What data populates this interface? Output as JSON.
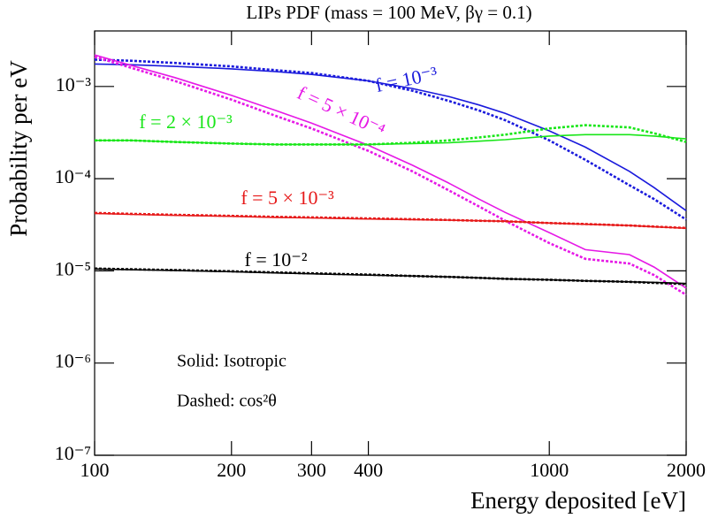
{
  "chart_data": {
    "type": "line",
    "title": "LIPs PDF (mass = 100 MeV, βγ = 0.1)",
    "x_label": "Energy deposited [eV]",
    "y_label": "Probability per eV",
    "log_x": true,
    "log_y": true,
    "xlim": [
      100,
      2000
    ],
    "ylim": [
      1e-07,
      0.004
    ],
    "xticks": [
      100,
      200,
      300,
      400,
      1000,
      2000
    ],
    "yticks": [
      {
        "value": 1e-07,
        "label": "10⁻⁷"
      },
      {
        "value": 1e-06,
        "label": "10⁻⁶"
      },
      {
        "value": 1e-05,
        "label": "10⁻⁵"
      },
      {
        "value": 0.0001,
        "label": "10⁻⁴"
      },
      {
        "value": 0.001,
        "label": "10⁻³"
      }
    ],
    "x": [
      100,
      120,
      150,
      200,
      250,
      300,
      400,
      500,
      600,
      700,
      800,
      1000,
      1200,
      1500,
      1700,
      2000
    ],
    "series": [
      {
        "name": "f = 10⁻³",
        "color": "#1a1adc",
        "values": [
          0.00175,
          0.00172,
          0.00165,
          0.00155,
          0.00145,
          0.00135,
          0.00115,
          0.00095,
          0.00078,
          0.00063,
          0.00051,
          0.00033,
          0.00022,
          0.00012,
          8e-05,
          4.5e-05
        ],
        "dashed_values": [
          0.00195,
          0.0019,
          0.0018,
          0.00165,
          0.0015,
          0.0014,
          0.00115,
          0.0009,
          0.0007,
          0.00055,
          0.00043,
          0.00026,
          0.00016,
          8.5e-05,
          6e-05,
          3.6e-05
        ]
      },
      {
        "name": "f = 5 × 10⁻⁴",
        "color": "#e619e6",
        "values": [
          0.0022,
          0.0017,
          0.00125,
          0.0008,
          0.00055,
          0.0004,
          0.00023,
          0.00014,
          9e-05,
          6e-05,
          4.3e-05,
          2.6e-05,
          1.7e-05,
          1.5e-05,
          1.1e-05,
          6.5e-06
        ],
        "dashed_values": [
          0.0021,
          0.0016,
          0.00115,
          0.00072,
          0.00048,
          0.00035,
          0.0002,
          0.00012,
          7.5e-05,
          5e-05,
          3.5e-05,
          2e-05,
          1.35e-05,
          1.2e-05,
          9e-06,
          5.5e-06
        ]
      },
      {
        "name": "f = 2 × 10⁻³",
        "color": "#19e619",
        "values": [
          0.00026,
          0.00026,
          0.00025,
          0.00024,
          0.000235,
          0.000235,
          0.000235,
          0.00024,
          0.000245,
          0.000255,
          0.000265,
          0.00029,
          0.0003,
          0.0003,
          0.00029,
          0.00027
        ],
        "dashed_values": [
          0.00026,
          0.00026,
          0.00025,
          0.00024,
          0.000235,
          0.000235,
          0.000235,
          0.000245,
          0.00026,
          0.00028,
          0.0003,
          0.00035,
          0.00038,
          0.00036,
          0.00031,
          0.00025
        ]
      },
      {
        "name": "f = 5 × 10⁻³",
        "color": "#e61919",
        "values": [
          4.2e-05,
          4.1e-05,
          4e-05,
          3.9e-05,
          3.8e-05,
          3.75e-05,
          3.65e-05,
          3.6e-05,
          3.55e-05,
          3.5e-05,
          3.45e-05,
          3.3e-05,
          3.2e-05,
          3.1e-05,
          3e-05,
          2.9e-05
        ],
        "dashed_values": [
          4.25e-05,
          4.15e-05,
          4.05e-05,
          3.95e-05,
          3.85e-05,
          3.8e-05,
          3.7e-05,
          3.63e-05,
          3.57e-05,
          3.5e-05,
          3.45e-05,
          3.3e-05,
          3.22e-05,
          3.1e-05,
          3.02e-05,
          2.92e-05
        ]
      },
      {
        "name": "f = 10⁻²",
        "color": "#000000",
        "values": [
          1.05e-05,
          1.03e-05,
          1.01e-05,
          9.8e-06,
          9.5e-06,
          9.3e-06,
          9e-06,
          8.8e-06,
          8.6e-06,
          8.4e-06,
          8.2e-06,
          8e-06,
          7.8e-06,
          7.6e-06,
          7.5e-06,
          7.3e-06
        ],
        "dashed_values": [
          1.06e-05,
          1.04e-05,
          1.02e-05,
          9.9e-06,
          9.6e-06,
          9.4e-06,
          9.1e-06,
          8.8e-06,
          8.6e-06,
          8.4e-06,
          8.2e-06,
          8e-06,
          7.8e-06,
          7.6e-06,
          7.4e-06,
          7.2e-06
        ]
      }
    ],
    "annotations": [
      "Solid: Isotropic",
      "Dashed: cos²θ"
    ]
  }
}
